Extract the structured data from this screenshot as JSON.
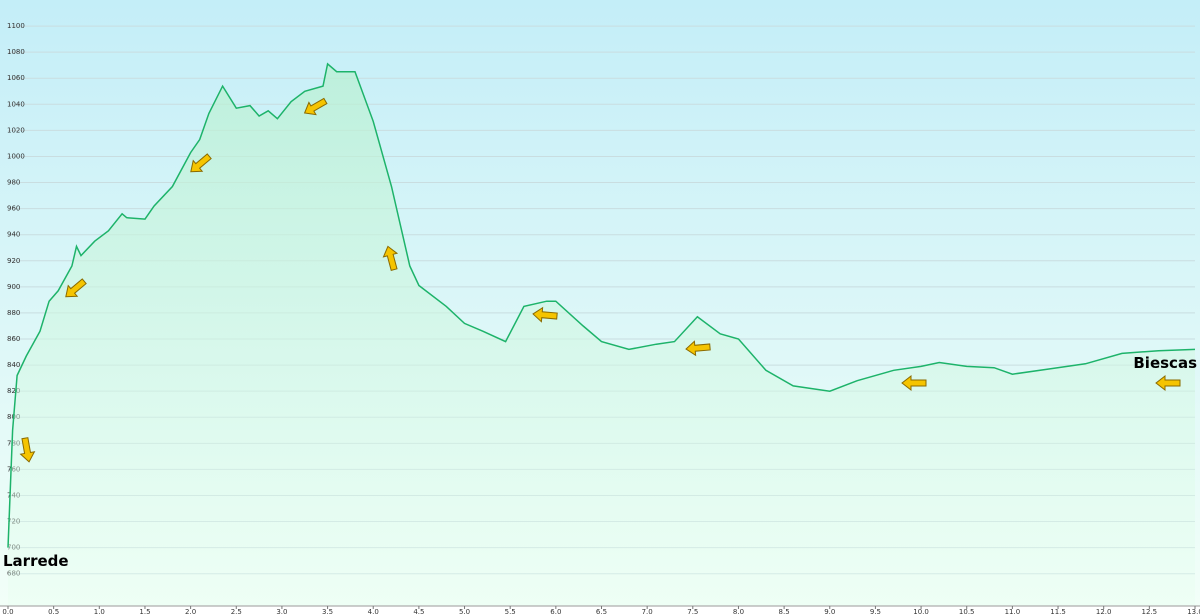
{
  "chart_data": {
    "type": "area",
    "x": [
      0.0,
      0.05,
      0.1,
      0.2,
      0.35,
      0.45,
      0.55,
      0.7,
      0.75,
      0.8,
      0.95,
      1.1,
      1.25,
      1.3,
      1.5,
      1.6,
      1.8,
      2.0,
      2.1,
      2.2,
      2.35,
      2.5,
      2.65,
      2.75,
      2.85,
      2.95,
      3.1,
      3.25,
      3.45,
      3.5,
      3.6,
      3.8,
      4.0,
      4.2,
      4.4,
      4.5,
      4.8,
      5.0,
      5.2,
      5.45,
      5.65,
      5.9,
      6.0,
      6.3,
      6.5,
      6.8,
      7.1,
      7.3,
      7.55,
      7.8,
      8.0,
      8.3,
      8.6,
      9.0,
      9.3,
      9.7,
      10.0,
      10.2,
      10.5,
      10.8,
      11.0,
      11.4,
      11.8,
      12.2,
      12.6,
      13.0
    ],
    "values": [
      700,
      790,
      832,
      847,
      866,
      889,
      897,
      916,
      931,
      924,
      935,
      943,
      956,
      953,
      952,
      962,
      977,
      1003,
      1013,
      1033,
      1054,
      1037,
      1039,
      1031,
      1035,
      1029,
      1042,
      1050,
      1054,
      1071,
      1065,
      1065,
      1027,
      977,
      916,
      901,
      885,
      872,
      866,
      858,
      885,
      889,
      889,
      870,
      858,
      852,
      856,
      858,
      877,
      864,
      860,
      836,
      824,
      820,
      828,
      836,
      839,
      842,
      839,
      838,
      833,
      837,
      841,
      849,
      851,
      852
    ],
    "color": "#1db36a",
    "xlim": [
      0,
      13
    ],
    "ylim": [
      656,
      1120
    ],
    "xticks": [
      {
        "value": 0,
        "label": "0.0"
      },
      0.5,
      {
        "value": 1,
        "label": "1.0"
      },
      1.5,
      {
        "value": 2,
        "label": "2.0"
      },
      2.5,
      {
        "value": 3,
        "label": "3.0"
      },
      3.5,
      {
        "value": 4,
        "label": "4.0"
      },
      4.5,
      {
        "value": 5,
        "label": "5.0"
      },
      5.5,
      {
        "value": 6,
        "label": "6.0"
      },
      6.5,
      {
        "value": 7,
        "label": "7.0"
      },
      7.5,
      {
        "value": 8,
        "label": "8.0"
      },
      8.5,
      {
        "value": 9,
        "label": "9.0"
      },
      9.5,
      {
        "value": 10,
        "label": "10.0"
      },
      10.5,
      {
        "value": 11,
        "label": "11.0"
      },
      11.5,
      {
        "value": 12,
        "label": "12.0"
      },
      12.5,
      {
        "value": 13,
        "label": "13.0"
      }
    ],
    "yticks": [
      680,
      700,
      720,
      740,
      760,
      780,
      800,
      820,
      840,
      860,
      880,
      900,
      920,
      940,
      960,
      980,
      1000,
      1020,
      1040,
      1060,
      1080,
      1100
    ],
    "grid": true,
    "annotations": [
      "Larrede",
      "Biescas"
    ]
  }
}
